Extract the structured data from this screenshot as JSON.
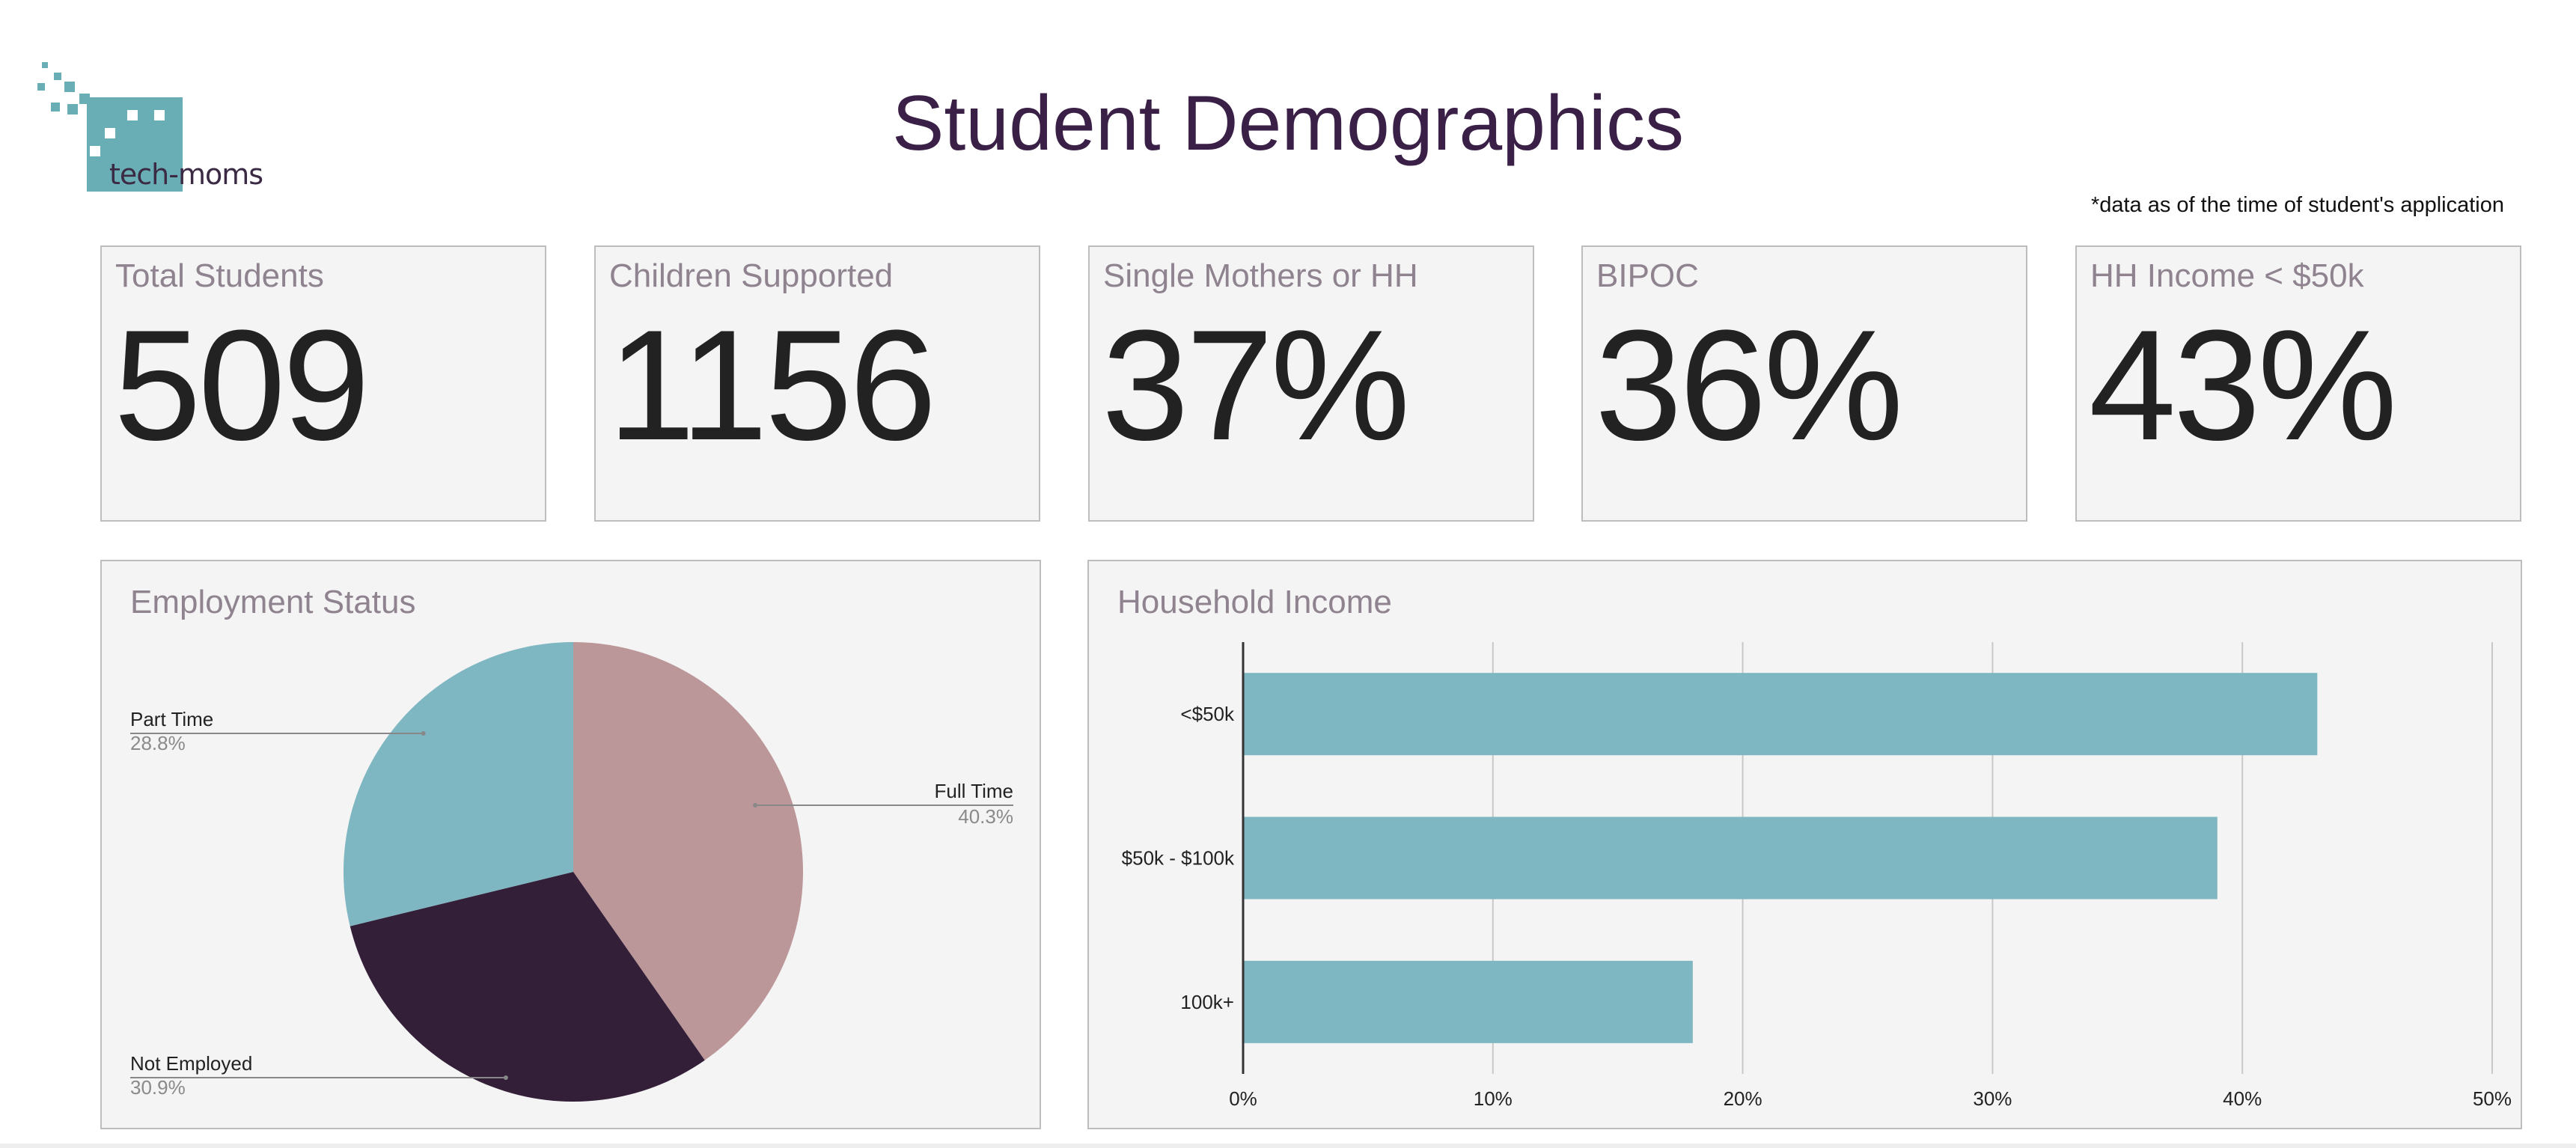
{
  "header": {
    "logo_text": "tech-moms",
    "title": "Student Demographics",
    "note": "*data as of the time of student's application"
  },
  "cards": [
    {
      "label": "Total Students",
      "value": "509"
    },
    {
      "label": "Children Supported",
      "value": "1156"
    },
    {
      "label": "Single Mothers or HH",
      "value": "37%"
    },
    {
      "label": "BIPOC",
      "value": "36%"
    },
    {
      "label": "HH Income < $50k",
      "value": "43%"
    }
  ],
  "colors": {
    "teal": "#7eb6c1",
    "rose": "#bc9799",
    "plum": "#341f39",
    "title": "#3a1f46"
  },
  "chart_data": [
    {
      "type": "pie",
      "title": "Employment Status",
      "slices": [
        {
          "label": "Full Time",
          "value": 40.3,
          "display": "40.3%",
          "color": "#bc9799"
        },
        {
          "label": "Not Employed",
          "value": 30.9,
          "display": "30.9%",
          "color": "#341f39"
        },
        {
          "label": "Part Time",
          "value": 28.8,
          "display": "28.8%",
          "color": "#7eb6c1"
        }
      ]
    },
    {
      "type": "bar",
      "orientation": "horizontal",
      "title": "Household Income",
      "categories": [
        "<$50k",
        "$50k - $100k",
        "100k+"
      ],
      "values": [
        43,
        39,
        18
      ],
      "xlim": [
        0,
        50
      ],
      "xticks": [
        "0%",
        "10%",
        "20%",
        "30%",
        "40%",
        "50%"
      ],
      "grid": true,
      "color": "#7eb6c1"
    }
  ]
}
